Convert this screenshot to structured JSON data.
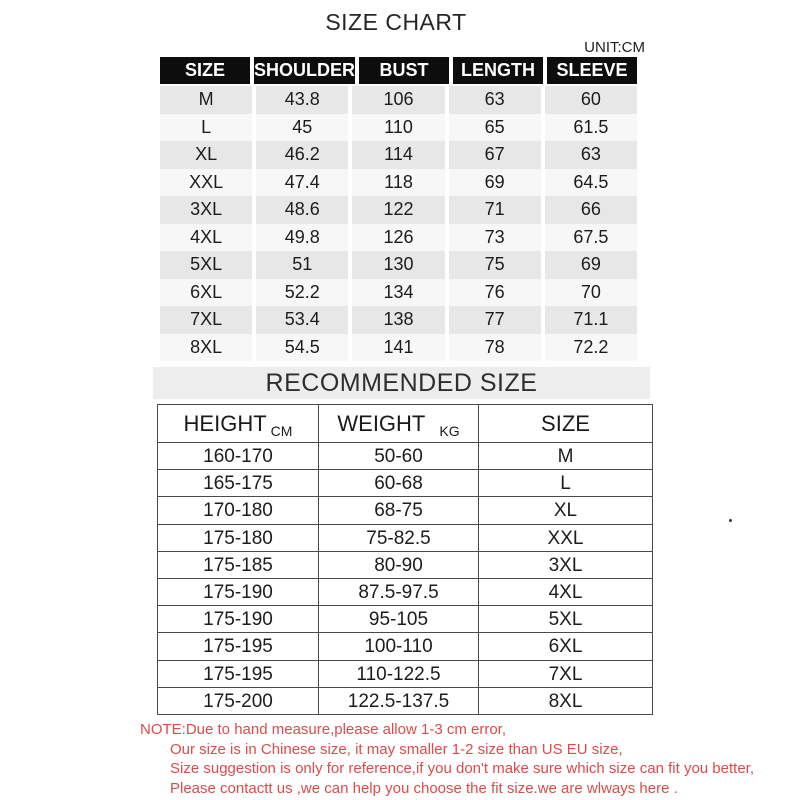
{
  "title": "SIZE CHART",
  "unit_label": "UNIT:CM",
  "chart_data": [
    {
      "type": "table",
      "title": "SIZE CHART",
      "unit": "CM",
      "columns": [
        "SIZE",
        "SHOULDER",
        "BUST",
        "LENGTH",
        "SLEEVE"
      ],
      "rows": [
        [
          "M",
          "43.8",
          "106",
          "63",
          "60"
        ],
        [
          "L",
          "45",
          "110",
          "65",
          "61.5"
        ],
        [
          "XL",
          "46.2",
          "114",
          "67",
          "63"
        ],
        [
          "XXL",
          "47.4",
          "118",
          "69",
          "64.5"
        ],
        [
          "3XL",
          "48.6",
          "122",
          "71",
          "66"
        ],
        [
          "4XL",
          "49.8",
          "126",
          "73",
          "67.5"
        ],
        [
          "5XL",
          "51",
          "130",
          "75",
          "69"
        ],
        [
          "6XL",
          "52.2",
          "134",
          "76",
          "70"
        ],
        [
          "7XL",
          "53.4",
          "138",
          "77",
          "71.1"
        ],
        [
          "8XL",
          "54.5",
          "141",
          "78",
          "72.2"
        ]
      ]
    },
    {
      "type": "table",
      "title": "RECOMMENDED SIZE",
      "columns": [
        {
          "label": "HEIGHT",
          "unit": "CM"
        },
        {
          "label": "WEIGHT",
          "unit": "KG"
        },
        {
          "label": "SIZE",
          "unit": ""
        }
      ],
      "rows": [
        [
          "160-170",
          "50-60",
          "M"
        ],
        [
          "165-175",
          "60-68",
          "L"
        ],
        [
          "170-180",
          "68-75",
          "XL"
        ],
        [
          "175-180",
          "75-82.5",
          "XXL"
        ],
        [
          "175-185",
          "80-90",
          "3XL"
        ],
        [
          "175-190",
          "87.5-97.5",
          "4XL"
        ],
        [
          "175-190",
          "95-105",
          "5XL"
        ],
        [
          "175-195",
          "100-110",
          "6XL"
        ],
        [
          "175-195",
          "110-122.5",
          "7XL"
        ],
        [
          "175-200",
          "122.5-137.5",
          "8XL"
        ]
      ]
    }
  ],
  "note": {
    "lines": [
      "NOTE:Due to hand measure,please allow 1-3 cm error,",
      "Our size is in Chinese size, it may smaller 1-2 size than US EU size,",
      "Size suggestion is only for reference,if you don't make sure which size can fit you better,",
      "Please contactt us ,we can help you choose the fit size.we are wlways here ."
    ]
  },
  "colors": {
    "header_bg": "#0d0d0d",
    "header_text": "#ffffff",
    "row_alt_bg": "#e7e7e7",
    "row_bg": "#f7f7f7",
    "band_bg": "#ededed",
    "border": "#4a4a4a",
    "note_color": "#dd4b4b"
  }
}
